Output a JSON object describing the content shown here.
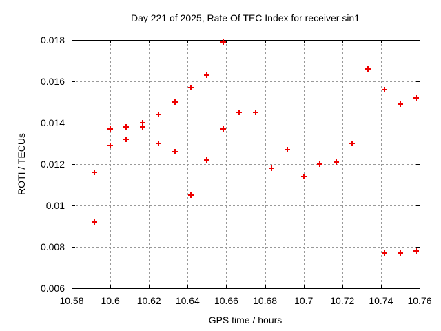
{
  "chart_data": {
    "type": "scatter",
    "title": "Day 221 of 2025, Rate Of TEC Index for receiver sin1",
    "xlabel": "GPS time / hours",
    "ylabel": "ROTI / TECUs",
    "xlim": [
      10.58,
      10.76
    ],
    "ylim": [
      0.006,
      0.018
    ],
    "xticks": [
      10.58,
      10.6,
      10.62,
      10.64,
      10.66,
      10.68,
      10.7,
      10.72,
      10.74,
      10.76
    ],
    "xtick_labels": [
      "10.58",
      "10.6",
      "10.62",
      "10.64",
      "10.66",
      "10.68",
      "10.7",
      "10.72",
      "10.74",
      "10.76"
    ],
    "yticks": [
      0.006,
      0.008,
      0.01,
      0.012,
      0.014,
      0.016,
      0.018
    ],
    "ytick_labels": [
      "0.006",
      "0.008",
      "0.01",
      "0.012",
      "0.014",
      "0.016",
      "0.018"
    ],
    "grid": true,
    "legend": "none",
    "colors": {
      "marker": "#ee0000",
      "grid": "#999999",
      "border": "#000000",
      "background": "#ffffff"
    },
    "marker": {
      "shape": "plus",
      "size": 9,
      "stroke_width": 2
    },
    "series": [
      {
        "name": "ROTI",
        "points": [
          [
            10.5917,
            0.0116
          ],
          [
            10.5917,
            0.0092
          ],
          [
            10.6,
            0.0137
          ],
          [
            10.6,
            0.0129
          ],
          [
            10.6083,
            0.0138
          ],
          [
            10.6083,
            0.0132
          ],
          [
            10.6167,
            0.014
          ],
          [
            10.6167,
            0.0138
          ],
          [
            10.625,
            0.0144
          ],
          [
            10.625,
            0.013
          ],
          [
            10.6333,
            0.015
          ],
          [
            10.6333,
            0.0126
          ],
          [
            10.6417,
            0.0157
          ],
          [
            10.6417,
            0.0105
          ],
          [
            10.65,
            0.0163
          ],
          [
            10.65,
            0.0122
          ],
          [
            10.6583,
            0.0179
          ],
          [
            10.6583,
            0.0137
          ],
          [
            10.6667,
            0.0145
          ],
          [
            10.675,
            0.0145
          ],
          [
            10.6833,
            0.0118
          ],
          [
            10.6917,
            0.0127
          ],
          [
            10.7,
            0.0114
          ],
          [
            10.7083,
            0.012
          ],
          [
            10.7167,
            0.0121
          ],
          [
            10.725,
            0.013
          ],
          [
            10.7333,
            0.0166
          ],
          [
            10.7417,
            0.0156
          ],
          [
            10.7417,
            0.0077
          ],
          [
            10.75,
            0.0149
          ],
          [
            10.75,
            0.0077
          ],
          [
            10.7583,
            0.0152
          ],
          [
            10.7583,
            0.0078
          ]
        ]
      }
    ]
  }
}
